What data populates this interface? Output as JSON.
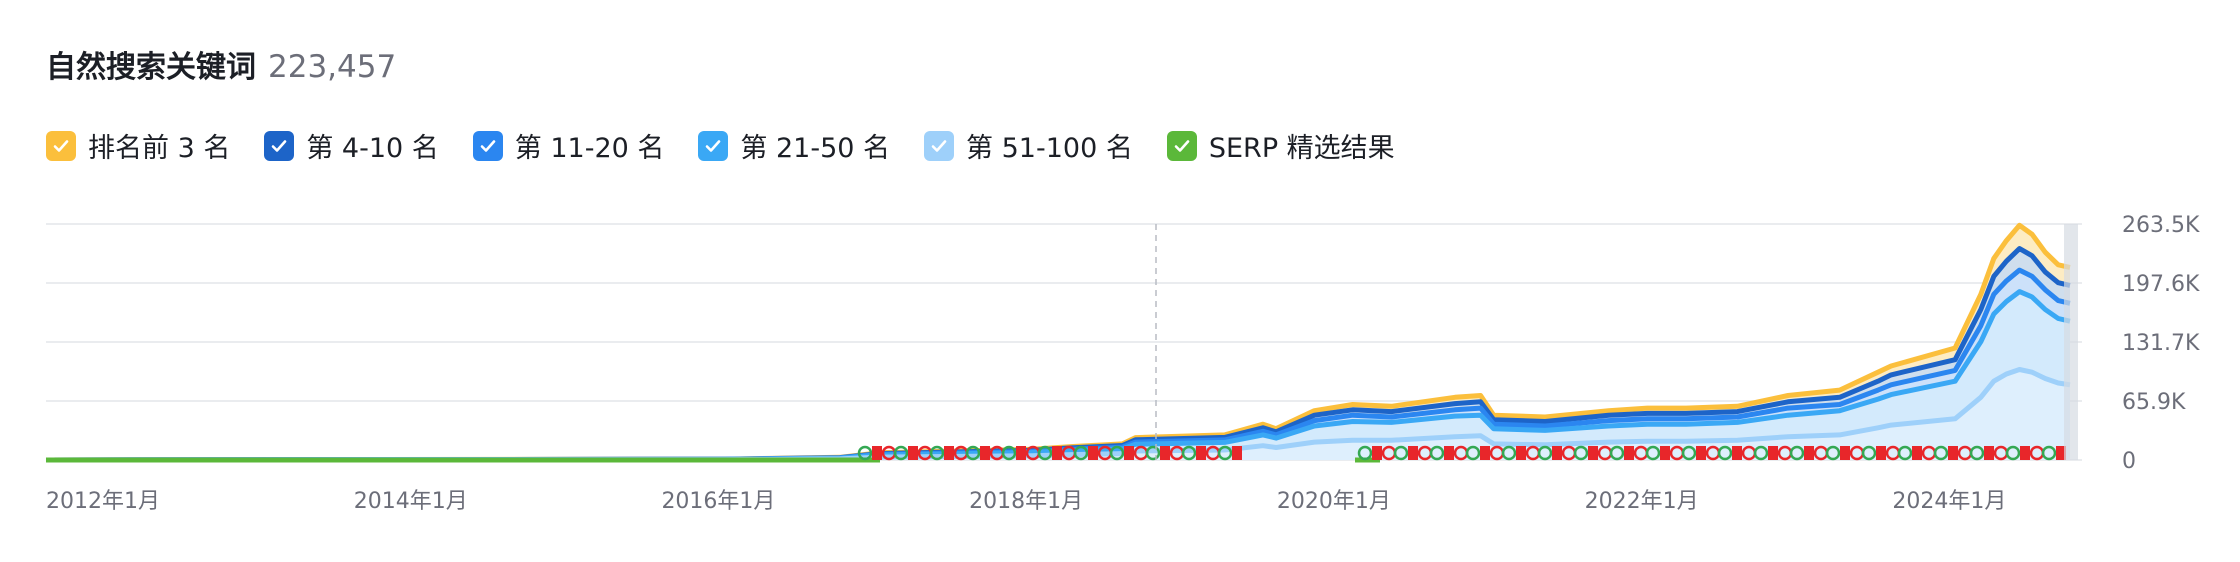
{
  "header": {
    "title": "自然搜索关键词",
    "count": "223,457"
  },
  "legend": [
    {
      "label": "排名前 3 名",
      "color": "#fbbf3c",
      "checked": true
    },
    {
      "label": "第 4-10 名",
      "color": "#1d64c8",
      "checked": true
    },
    {
      "label": "第 11-20 名",
      "color": "#2b86f0",
      "checked": true
    },
    {
      "label": "第 21-50 名",
      "color": "#3aa8f5",
      "checked": true
    },
    {
      "label": "第 51-100 名",
      "color": "#9ed0fa",
      "checked": true
    },
    {
      "label": "SERP 精选结果",
      "color": "#5bb83a",
      "checked": true
    }
  ],
  "chart_data": {
    "type": "area",
    "x": [
      "2012-01",
      "2016-06",
      "2017-03",
      "2017-06",
      "2018-06",
      "2018-09",
      "2019-01",
      "2019-02",
      "2019-09",
      "2019-12",
      "2020-01",
      "2020-04",
      "2020-07",
      "2020-10",
      "2021-03",
      "2021-05",
      "2021-06",
      "2021-10",
      "2022-03",
      "2022-06",
      "2022-09",
      "2023-01",
      "2023-05",
      "2023-09",
      "2023-12",
      "2024-01",
      "2024-06",
      "2024-08",
      "2024-09",
      "2024-10",
      "2024-11",
      "2024-12",
      "2025-01",
      "2025-02",
      "2025-03"
    ],
    "series": [
      {
        "name": "排名前 3 名",
        "values": [
          0,
          1000,
          3000,
          8000,
          12000,
          15000,
          18000,
          25000,
          28000,
          40000,
          35000,
          55000,
          62000,
          60000,
          70000,
          72000,
          50000,
          48000,
          55000,
          58000,
          58000,
          60000,
          72000,
          78000,
          98000,
          105000,
          125000,
          185000,
          225000,
          245000,
          262000,
          252000,
          232000,
          218000,
          215000
        ]
      },
      {
        "name": "第 4-10 名",
        "values": [
          0,
          900,
          2700,
          7200,
          10800,
          13500,
          16200,
          22500,
          25200,
          36000,
          31500,
          50000,
          56000,
          54000,
          63000,
          65000,
          45000,
          43000,
          50000,
          52000,
          52000,
          54000,
          65000,
          70000,
          88000,
          95000,
          112000,
          168000,
          205000,
          222000,
          236000,
          228000,
          210000,
          198000,
          195000
        ]
      },
      {
        "name": "第 11-20 名",
        "values": [
          0,
          800,
          2400,
          6400,
          9600,
          12000,
          14400,
          20000,
          22400,
          32000,
          28000,
          44000,
          50000,
          48000,
          56000,
          58000,
          40000,
          38000,
          44000,
          46000,
          46000,
          48000,
          58000,
          62000,
          78000,
          84000,
          100000,
          150000,
          185000,
          200000,
          212000,
          205000,
          190000,
          178000,
          175000
        ]
      },
      {
        "name": "第 21-50 名",
        "values": [
          0,
          700,
          2100,
          5600,
          8400,
          10500,
          12600,
          17500,
          19600,
          28000,
          24500,
          38000,
          43000,
          42000,
          49000,
          50000,
          35000,
          33000,
          38000,
          40000,
          40000,
          42000,
          50000,
          55000,
          68000,
          73000,
          88000,
          132000,
          163000,
          177000,
          188000,
          182000,
          168000,
          158000,
          155000
        ]
      },
      {
        "name": "第 51-100 名",
        "values": [
          0,
          400,
          1200,
          3200,
          4800,
          6000,
          7200,
          10000,
          11200,
          16000,
          14000,
          20000,
          22000,
          22000,
          26000,
          27000,
          18000,
          17000,
          20000,
          21000,
          21000,
          22000,
          26000,
          28000,
          36000,
          39000,
          46000,
          70000,
          88000,
          96000,
          101000,
          98000,
          91000,
          86000,
          84000
        ]
      }
    ],
    "serp_features_baseline": 0,
    "x_ticks": [
      "2012年1月",
      "2014年1月",
      "2016年1月",
      "2018年1月",
      "2020年1月",
      "2022年1月",
      "2024年1月"
    ],
    "y_ticks": [
      "0",
      "65.9K",
      "131.7K",
      "197.6K",
      "263.5K"
    ],
    "ylim": [
      0,
      263500
    ],
    "grid": true
  }
}
